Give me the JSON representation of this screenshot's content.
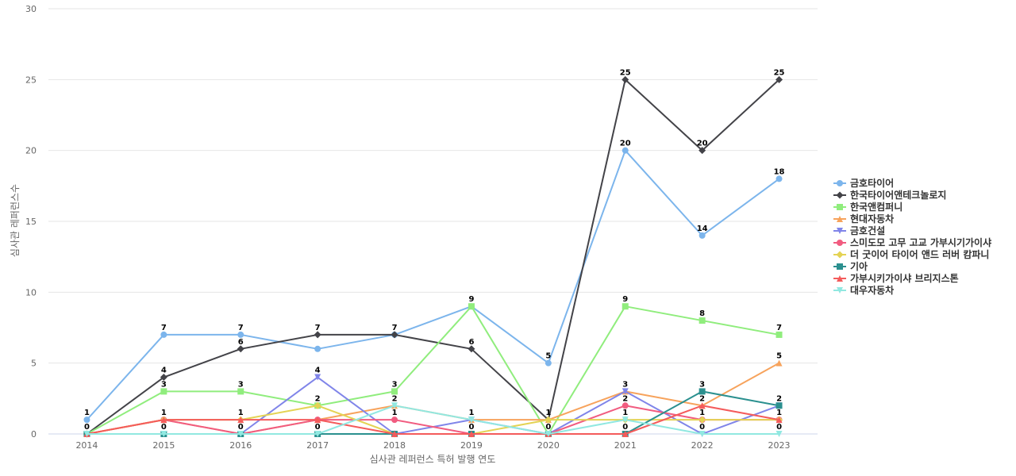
{
  "chart_data": {
    "type": "line",
    "title": "",
    "xlabel": "심사관 레퍼런스 특허 발행 연도",
    "ylabel": "심사관 레퍼런스수",
    "ylim": [
      0,
      30
    ],
    "yticks": [
      0,
      5,
      10,
      15,
      20,
      25,
      30
    ],
    "categories": [
      "2014",
      "2015",
      "2016",
      "2017",
      "2018",
      "2019",
      "2020",
      "2021",
      "2022",
      "2023"
    ],
    "grid": true,
    "legend_position": "right",
    "series": [
      {
        "name": "금호타이어",
        "color": "#7cb5ec",
        "marker": "circle",
        "values": [
          1,
          7,
          7,
          6,
          7,
          9,
          5,
          20,
          14,
          18
        ],
        "labels": [
          1,
          7,
          7,
          null,
          7,
          9,
          5,
          20,
          14,
          18
        ]
      },
      {
        "name": "한국타이어앤테크놀로지",
        "color": "#434348",
        "marker": "diamond",
        "values": [
          0,
          4,
          6,
          7,
          7,
          6,
          1,
          25,
          20,
          25
        ],
        "labels": [
          null,
          4,
          6,
          7,
          null,
          6,
          1,
          25,
          20,
          25
        ]
      },
      {
        "name": "한국앤컴퍼니",
        "color": "#90ed7d",
        "marker": "square",
        "values": [
          0,
          3,
          3,
          2,
          3,
          9,
          0,
          9,
          8,
          7
        ],
        "labels": [
          null,
          3,
          3,
          2,
          3,
          null,
          null,
          9,
          8,
          7
        ]
      },
      {
        "name": "현대자동차",
        "color": "#f7a35c",
        "marker": "triangle",
        "values": [
          0,
          1,
          0,
          1,
          2,
          1,
          1,
          3,
          2,
          5
        ],
        "labels": [
          null,
          null,
          null,
          null,
          2,
          null,
          null,
          3,
          2,
          5
        ]
      },
      {
        "name": "금호건설",
        "color": "#8085e9",
        "marker": "triangle-down",
        "values": [
          0,
          0,
          0,
          4,
          0,
          1,
          0,
          3,
          0,
          2
        ],
        "labels": [
          null,
          null,
          null,
          4,
          null,
          null,
          null,
          null,
          null,
          null
        ]
      },
      {
        "name": "스미도모 고무 고교 가부시기가이샤",
        "color": "#f15c80",
        "marker": "circle",
        "values": [
          0,
          1,
          0,
          1,
          1,
          0,
          0,
          2,
          1,
          1
        ],
        "labels": [
          null,
          null,
          null,
          null,
          1,
          null,
          null,
          2,
          null,
          null
        ]
      },
      {
        "name": "더 굿이어 타이어 앤드 러버 캄파니",
        "color": "#e4d354",
        "marker": "diamond",
        "values": [
          0,
          1,
          1,
          2,
          0,
          0,
          1,
          1,
          1,
          1
        ],
        "labels": [
          null,
          1,
          1,
          null,
          null,
          null,
          null,
          1,
          1,
          1
        ]
      },
      {
        "name": "기아",
        "color": "#2b908f",
        "marker": "square",
        "values": [
          0,
          0,
          0,
          0,
          0,
          0,
          0,
          0,
          3,
          2
        ],
        "labels": [
          0,
          0,
          0,
          0,
          null,
          0,
          0,
          0,
          3,
          2
        ]
      },
      {
        "name": "가부시키가이샤 브리지스톤",
        "color": "#f45b5b",
        "marker": "triangle",
        "values": [
          0,
          1,
          1,
          1,
          0,
          0,
          0,
          0,
          2,
          1
        ],
        "labels": [
          null,
          null,
          null,
          null,
          null,
          null,
          null,
          null,
          null,
          null
        ]
      },
      {
        "name": "대우자동차",
        "color": "#91e8e1",
        "marker": "triangle-down",
        "values": [
          0,
          0,
          0,
          0,
          2,
          1,
          0,
          1,
          0,
          0
        ],
        "labels": [
          null,
          null,
          null,
          null,
          null,
          1,
          null,
          null,
          0,
          0
        ]
      }
    ]
  }
}
